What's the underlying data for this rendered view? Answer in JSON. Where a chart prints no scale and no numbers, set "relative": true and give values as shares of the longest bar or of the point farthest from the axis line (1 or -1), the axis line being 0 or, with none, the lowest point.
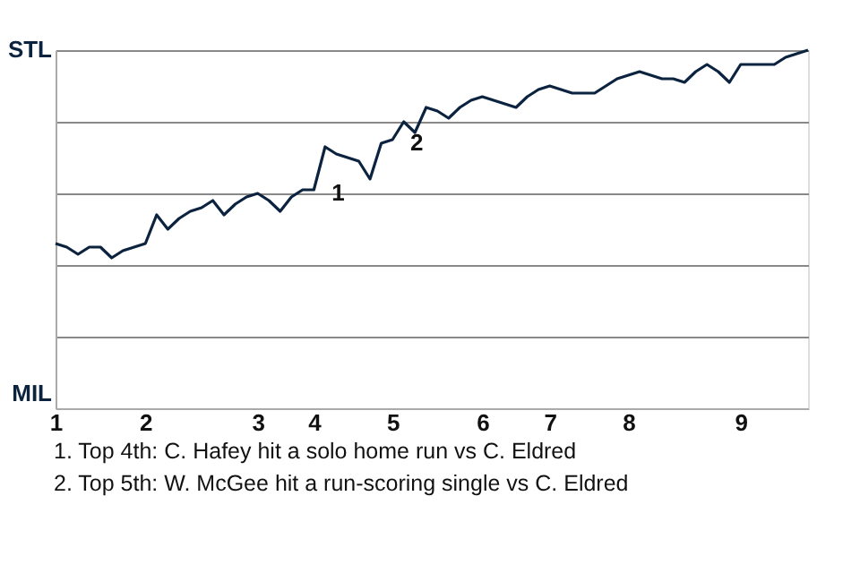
{
  "chart_data": {
    "type": "line",
    "relative": true,
    "categories": [
      "1",
      null,
      null,
      null,
      null,
      null,
      null,
      null,
      "2",
      null,
      null,
      null,
      null,
      null,
      null,
      null,
      null,
      null,
      "3",
      null,
      null,
      null,
      null,
      "4",
      null,
      null,
      null,
      null,
      null,
      null,
      "5",
      null,
      null,
      null,
      null,
      null,
      null,
      null,
      "6",
      null,
      null,
      null,
      null,
      null,
      "7",
      null,
      null,
      null,
      null,
      null,
      null,
      "8",
      null,
      null,
      null,
      null,
      null,
      null,
      null,
      null,
      null,
      "9",
      null,
      null,
      null,
      null,
      null,
      null
    ],
    "series": [
      {
        "color": "#0c2340",
        "values": [
          0.46,
          0.45,
          0.43,
          0.45,
          0.45,
          0.42,
          0.44,
          0.45,
          0.46,
          0.54,
          0.5,
          0.53,
          0.55,
          0.56,
          0.58,
          0.54,
          0.57,
          0.59,
          0.6,
          0.58,
          0.55,
          0.59,
          0.61,
          0.61,
          0.73,
          0.71,
          0.7,
          0.69,
          0.64,
          0.74,
          0.75,
          0.8,
          0.77,
          0.84,
          0.83,
          0.81,
          0.84,
          0.86,
          0.87,
          0.86,
          0.85,
          0.84,
          0.87,
          0.89,
          0.9,
          0.89,
          0.88,
          0.88,
          0.88,
          0.9,
          0.92,
          0.93,
          0.94,
          0.93,
          0.92,
          0.92,
          0.91,
          0.94,
          0.96,
          0.94,
          0.91,
          0.96,
          0.96,
          0.96,
          0.96,
          0.98,
          0.99,
          1
        ]
      }
    ],
    "grid": "y",
    "annotations": [
      "STL",
      "MIL",
      {
        "text": "1",
        "x": "4"
      },
      {
        "text": "2",
        "x": "5"
      },
      "1. Top 4th: C. Hafey hit a solo home run vs C. Eldred",
      "2. Top 5th: W. McGee hit a run-scoring single vs C. Eldred"
    ]
  }
}
